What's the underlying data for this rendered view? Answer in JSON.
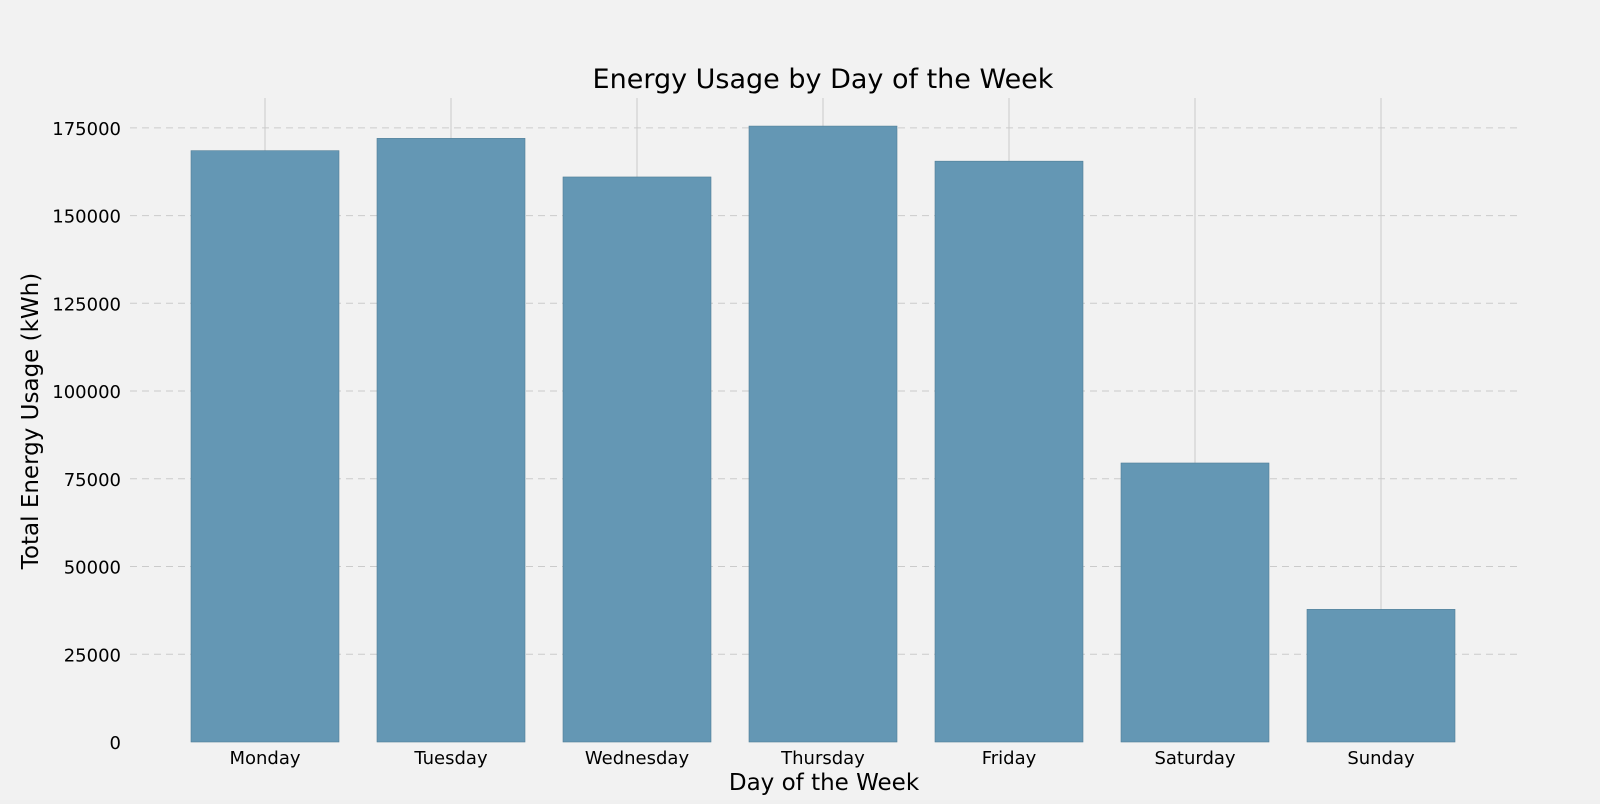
{
  "chart_data": {
    "type": "bar",
    "title": "Energy Usage by Day of the Week",
    "xlabel": "Day of the Week",
    "ylabel": "Total Energy Usage (kWh)",
    "categories": [
      "Monday",
      "Tuesday",
      "Wednesday",
      "Thursday",
      "Friday",
      "Saturday",
      "Sunday"
    ],
    "values": [
      168500,
      172000,
      161000,
      175500,
      165500,
      79500,
      37800
    ],
    "ylim": [
      0,
      183500
    ],
    "yticks": [
      0,
      25000,
      50000,
      75000,
      100000,
      125000,
      150000,
      175000
    ],
    "grid": true,
    "colors": {
      "bar": "#6497b4",
      "background": "#f2f2f2",
      "grid": "#cbcbcb"
    }
  }
}
